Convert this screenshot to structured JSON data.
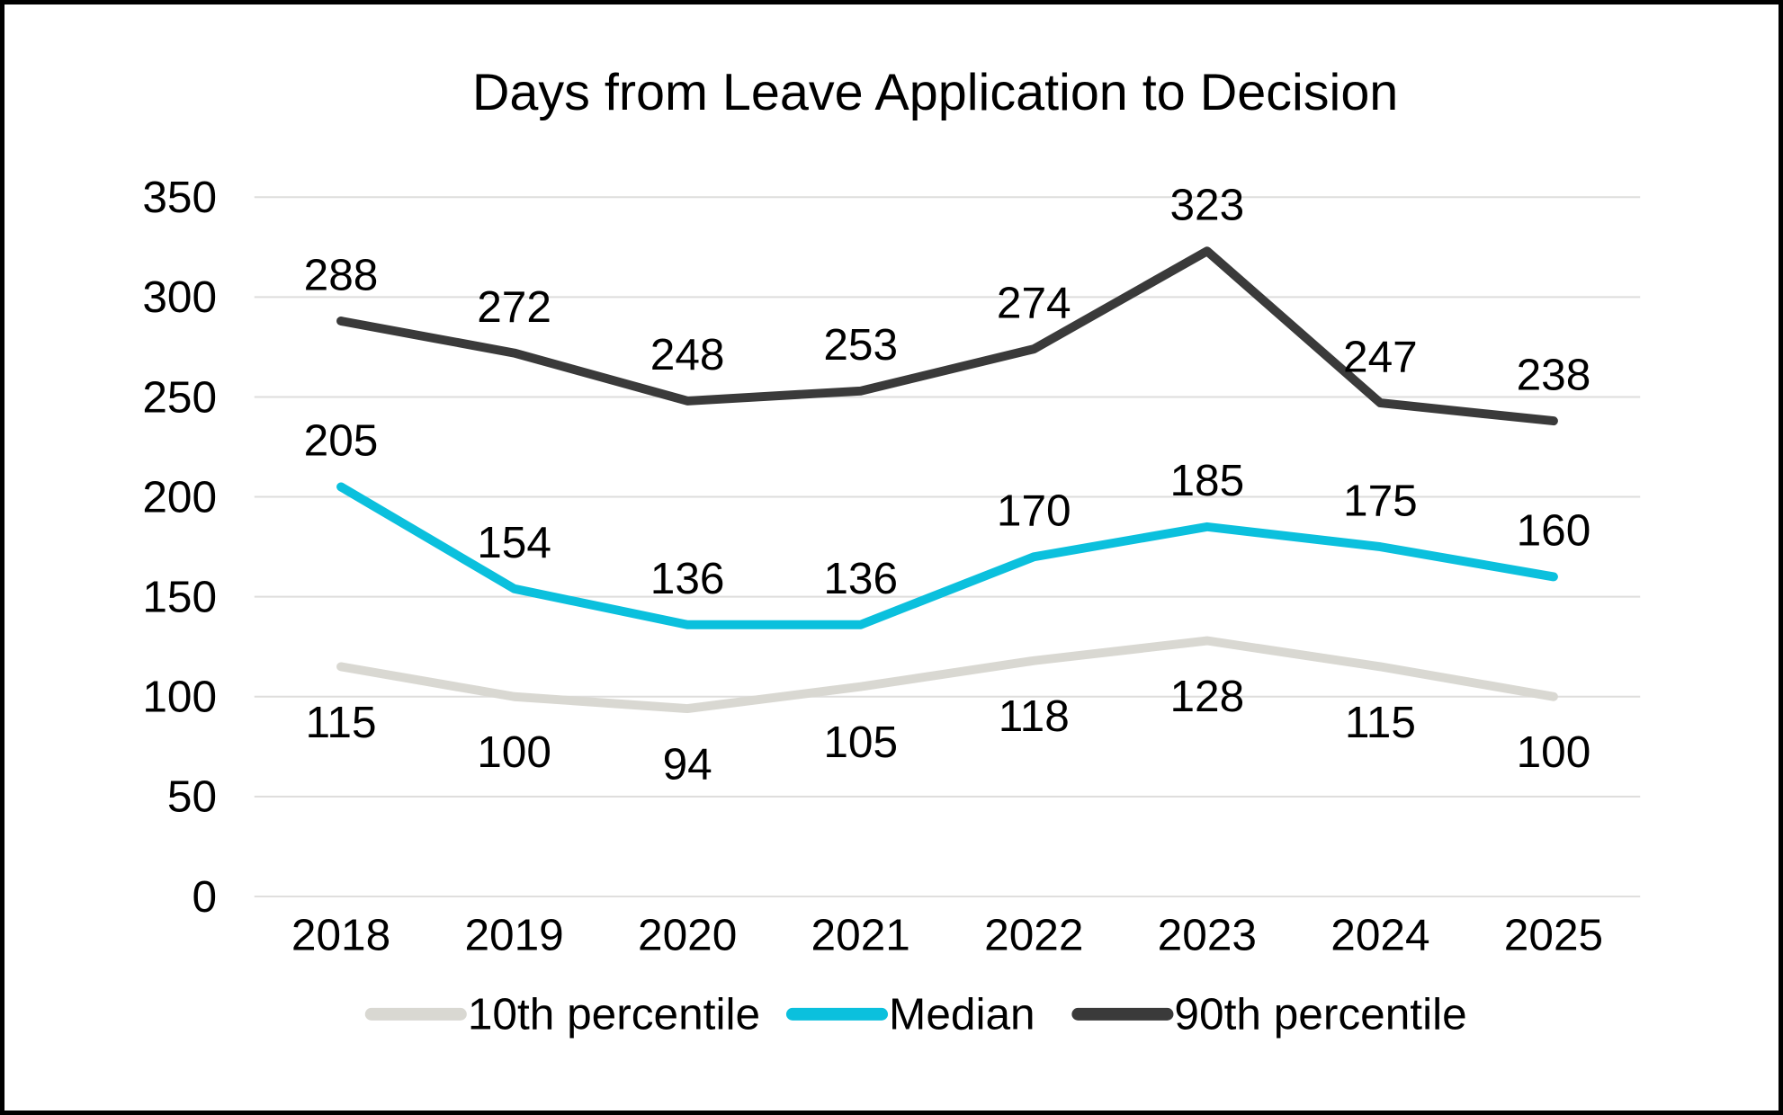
{
  "title": "Days from Leave Application to Decision",
  "chart_data": {
    "type": "line",
    "title": "Days from Leave Application to Decision",
    "categories": [
      "2018",
      "2019",
      "2020",
      "2021",
      "2022",
      "2023",
      "2024",
      "2025"
    ],
    "series": [
      {
        "name": "10th percentile",
        "color": "#D9D8D2",
        "label_position": "below",
        "values": [
          115,
          100,
          94,
          105,
          118,
          128,
          115,
          100
        ]
      },
      {
        "name": "Median",
        "color": "#0BC0DD",
        "label_position": "above",
        "values": [
          205,
          154,
          136,
          136,
          170,
          185,
          175,
          160
        ]
      },
      {
        "name": "90th percentile",
        "color": "#3A3A3A",
        "label_position": "above",
        "values": [
          288,
          272,
          248,
          253,
          274,
          323,
          247,
          238
        ]
      }
    ],
    "yticks": [
      0,
      50,
      100,
      150,
      200,
      250,
      300,
      350
    ],
    "ylim": [
      0,
      350
    ],
    "xlabel": "",
    "ylabel": "",
    "grid": true,
    "legend_position": "bottom",
    "legend_order": [
      "10th percentile",
      "Median",
      "90th percentile"
    ]
  },
  "colors": {
    "background": "#FFFFFF",
    "border": "#000000",
    "gridline": "#DEDDDC",
    "text": "#000000"
  }
}
